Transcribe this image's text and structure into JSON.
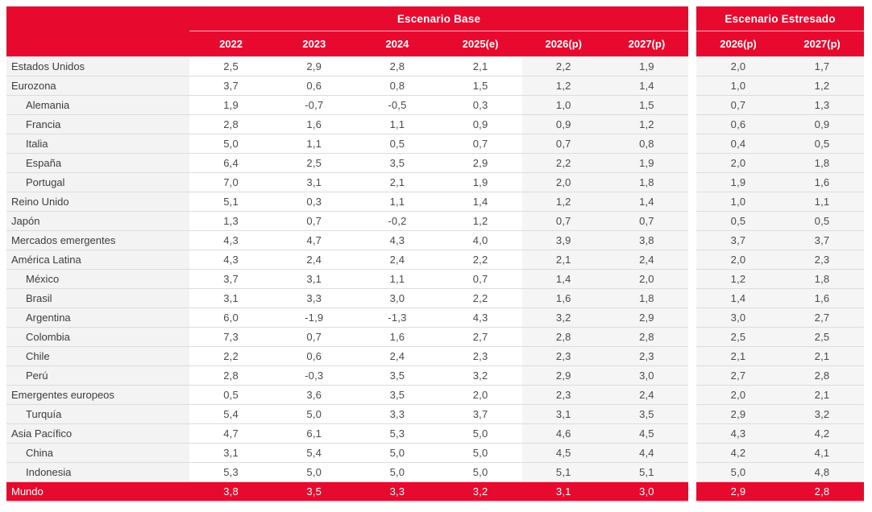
{
  "colors": {
    "accent_red": "#E8092E",
    "label_column_bg": "#f3f3f3",
    "forecast_column_bg": "#f5f5f5",
    "row_separator": "#dcdcdc",
    "header_text": "#ffffff",
    "body_text": "#3c3c3c"
  },
  "chart_data": {
    "type": "table",
    "groups": [
      {
        "name": "base",
        "title": "Escenario Base",
        "columns": [
          "2022",
          "2023",
          "2024",
          "2025(e)",
          "2026(p)",
          "2027(p)"
        ],
        "shaded_columns": [
          "2026(p)",
          "2027(p)"
        ]
      },
      {
        "name": "stressed",
        "title": "Escenario Estresado",
        "columns": [
          "2026(p)",
          "2027(p)"
        ],
        "shaded_columns": [
          "2026(p)",
          "2027(p)"
        ]
      }
    ],
    "rows": [
      {
        "label": "Estados Unidos",
        "indent": 0,
        "base": [
          "2,5",
          "2,9",
          "2,8",
          "2,1",
          "2,2",
          "1,9"
        ],
        "stressed": [
          "2,0",
          "1,7"
        ],
        "is_total": false
      },
      {
        "label": "Eurozona",
        "indent": 0,
        "base": [
          "3,7",
          "0,6",
          "0,8",
          "1,5",
          "1,2",
          "1,4"
        ],
        "stressed": [
          "1,0",
          "1,2"
        ],
        "is_total": false
      },
      {
        "label": "Alemania",
        "indent": 1,
        "base": [
          "1,9",
          "-0,7",
          "-0,5",
          "0,3",
          "1,0",
          "1,5"
        ],
        "stressed": [
          "0,7",
          "1,3"
        ],
        "is_total": false
      },
      {
        "label": "Francia",
        "indent": 1,
        "base": [
          "2,8",
          "1,6",
          "1,1",
          "0,9",
          "0,9",
          "1,2"
        ],
        "stressed": [
          "0,6",
          "0,9"
        ],
        "is_total": false
      },
      {
        "label": "Italia",
        "indent": 1,
        "base": [
          "5,0",
          "1,1",
          "0,5",
          "0,7",
          "0,7",
          "0,8"
        ],
        "stressed": [
          "0,4",
          "0,5"
        ],
        "is_total": false
      },
      {
        "label": "España",
        "indent": 1,
        "base": [
          "6,4",
          "2,5",
          "3,5",
          "2,9",
          "2,2",
          "1,9"
        ],
        "stressed": [
          "2,0",
          "1,8"
        ],
        "is_total": false
      },
      {
        "label": "Portugal",
        "indent": 1,
        "base": [
          "7,0",
          "3,1",
          "2,1",
          "1,9",
          "2,0",
          "1,8"
        ],
        "stressed": [
          "1,9",
          "1,6"
        ],
        "is_total": false
      },
      {
        "label": "Reino Unido",
        "indent": 0,
        "base": [
          "5,1",
          "0,3",
          "1,1",
          "1,4",
          "1,2",
          "1,4"
        ],
        "stressed": [
          "1,0",
          "1,1"
        ],
        "is_total": false
      },
      {
        "label": "Japón",
        "indent": 0,
        "base": [
          "1,3",
          "0,7",
          "-0,2",
          "1,2",
          "0,7",
          "0,7"
        ],
        "stressed": [
          "0,5",
          "0,5"
        ],
        "is_total": false
      },
      {
        "label": "Mercados emergentes",
        "indent": 0,
        "base": [
          "4,3",
          "4,7",
          "4,3",
          "4,0",
          "3,9",
          "3,8"
        ],
        "stressed": [
          "3,7",
          "3,7"
        ],
        "is_total": false
      },
      {
        "label": "América Latina",
        "indent": 0,
        "base": [
          "4,3",
          "2,4",
          "2,4",
          "2,2",
          "2,1",
          "2,4"
        ],
        "stressed": [
          "2,0",
          "2,3"
        ],
        "is_total": false
      },
      {
        "label": "México",
        "indent": 1,
        "base": [
          "3,7",
          "3,1",
          "1,1",
          "0,7",
          "1,4",
          "2,0"
        ],
        "stressed": [
          "1,2",
          "1,8"
        ],
        "is_total": false
      },
      {
        "label": "Brasil",
        "indent": 1,
        "base": [
          "3,1",
          "3,3",
          "3,0",
          "2,2",
          "1,6",
          "1,8"
        ],
        "stressed": [
          "1,4",
          "1,6"
        ],
        "is_total": false
      },
      {
        "label": "Argentina",
        "indent": 1,
        "base": [
          "6,0",
          "-1,9",
          "-1,3",
          "4,3",
          "3,2",
          "2,9"
        ],
        "stressed": [
          "3,0",
          "2,7"
        ],
        "is_total": false
      },
      {
        "label": "Colombia",
        "indent": 1,
        "base": [
          "7,3",
          "0,7",
          "1,6",
          "2,7",
          "2,8",
          "2,8"
        ],
        "stressed": [
          "2,5",
          "2,5"
        ],
        "is_total": false
      },
      {
        "label": "Chile",
        "indent": 1,
        "base": [
          "2,2",
          "0,6",
          "2,4",
          "2,3",
          "2,3",
          "2,3"
        ],
        "stressed": [
          "2,1",
          "2,1"
        ],
        "is_total": false
      },
      {
        "label": "Perú",
        "indent": 1,
        "base": [
          "2,8",
          "-0,3",
          "3,5",
          "3,2",
          "2,9",
          "3,0"
        ],
        "stressed": [
          "2,7",
          "2,8"
        ],
        "is_total": false
      },
      {
        "label": "Emergentes europeos",
        "indent": 0,
        "base": [
          "0,5",
          "3,6",
          "3,5",
          "2,0",
          "2,3",
          "2,4"
        ],
        "stressed": [
          "2,0",
          "2,1"
        ],
        "is_total": false
      },
      {
        "label": "Turquía",
        "indent": 1,
        "base": [
          "5,4",
          "5,0",
          "3,3",
          "3,7",
          "3,1",
          "3,5"
        ],
        "stressed": [
          "2,9",
          "3,2"
        ],
        "is_total": false
      },
      {
        "label": "Asia Pacífico",
        "indent": 0,
        "base": [
          "4,7",
          "6,1",
          "5,3",
          "5,0",
          "4,6",
          "4,5"
        ],
        "stressed": [
          "4,3",
          "4,2"
        ],
        "is_total": false
      },
      {
        "label": "China",
        "indent": 1,
        "base": [
          "3,1",
          "5,4",
          "5,0",
          "5,0",
          "4,5",
          "4,4"
        ],
        "stressed": [
          "4,2",
          "4,1"
        ],
        "is_total": false
      },
      {
        "label": "Indonesia",
        "indent": 1,
        "base": [
          "5,3",
          "5,0",
          "5,0",
          "5,0",
          "5,1",
          "5,1"
        ],
        "stressed": [
          "5,0",
          "4,8"
        ],
        "is_total": false
      },
      {
        "label": "Mundo",
        "indent": 0,
        "base": [
          "3,8",
          "3,5",
          "3,3",
          "3,2",
          "3,1",
          "3,0"
        ],
        "stressed": [
          "2,9",
          "2,8"
        ],
        "is_total": true
      }
    ]
  }
}
